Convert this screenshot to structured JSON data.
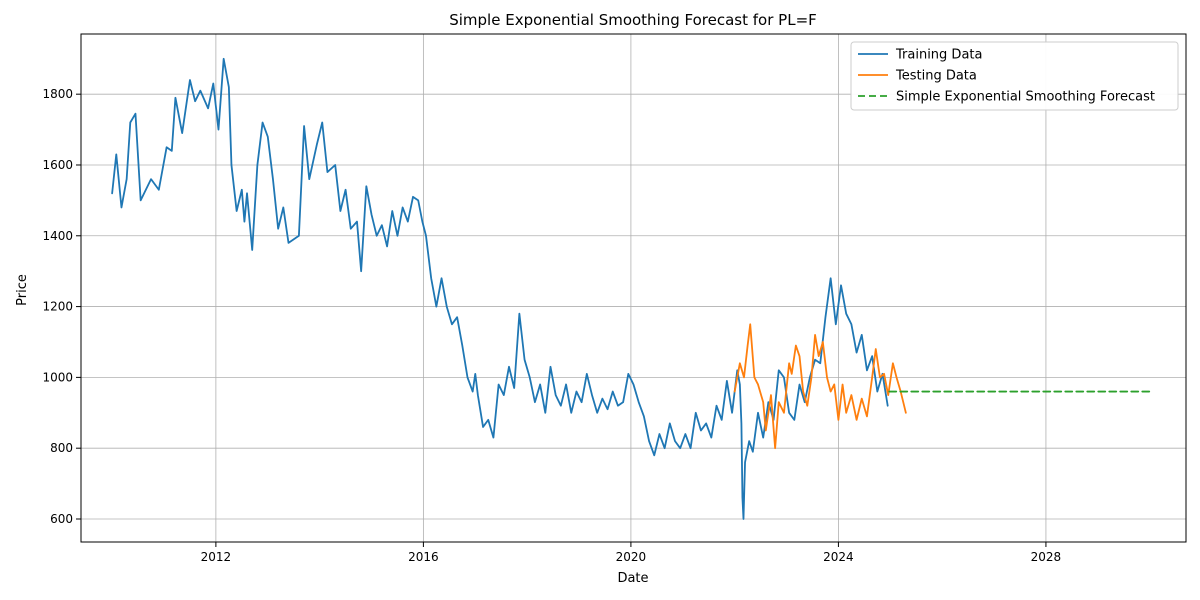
{
  "chart_data": {
    "type": "line",
    "title": "Simple Exponential Smoothing Forecast for PL=F",
    "xlabel": "Date",
    "ylabel": "Price",
    "xlim": [
      2009.4,
      2030.7
    ],
    "ylim": [
      535,
      1970
    ],
    "xticks": [
      2012,
      2016,
      2020,
      2024,
      2028
    ],
    "yticks": [
      600,
      800,
      1000,
      1200,
      1400,
      1600,
      1800
    ],
    "grid": true,
    "legend_position": "top-right",
    "series": [
      {
        "name": "Training Data",
        "color": "#1f77b4",
        "points": [
          [
            2010.0,
            1520
          ],
          [
            2010.08,
            1630
          ],
          [
            2010.18,
            1480
          ],
          [
            2010.28,
            1560
          ],
          [
            2010.35,
            1720
          ],
          [
            2010.45,
            1745
          ],
          [
            2010.55,
            1500
          ],
          [
            2010.75,
            1560
          ],
          [
            2010.9,
            1530
          ],
          [
            2011.05,
            1650
          ],
          [
            2011.15,
            1640
          ],
          [
            2011.22,
            1790
          ],
          [
            2011.35,
            1690
          ],
          [
            2011.5,
            1840
          ],
          [
            2011.6,
            1780
          ],
          [
            2011.7,
            1810
          ],
          [
            2011.85,
            1760
          ],
          [
            2011.95,
            1830
          ],
          [
            2012.05,
            1700
          ],
          [
            2012.15,
            1900
          ],
          [
            2012.25,
            1820
          ],
          [
            2012.3,
            1600
          ],
          [
            2012.4,
            1470
          ],
          [
            2012.5,
            1530
          ],
          [
            2012.55,
            1440
          ],
          [
            2012.6,
            1520
          ],
          [
            2012.7,
            1360
          ],
          [
            2012.8,
            1600
          ],
          [
            2012.9,
            1720
          ],
          [
            2013.0,
            1680
          ],
          [
            2013.1,
            1560
          ],
          [
            2013.2,
            1420
          ],
          [
            2013.3,
            1480
          ],
          [
            2013.4,
            1380
          ],
          [
            2013.6,
            1400
          ],
          [
            2013.7,
            1710
          ],
          [
            2013.8,
            1560
          ],
          [
            2013.95,
            1660
          ],
          [
            2014.05,
            1720
          ],
          [
            2014.15,
            1580
          ],
          [
            2014.3,
            1600
          ],
          [
            2014.4,
            1470
          ],
          [
            2014.5,
            1530
          ],
          [
            2014.6,
            1420
          ],
          [
            2014.72,
            1440
          ],
          [
            2014.8,
            1300
          ],
          [
            2014.9,
            1540
          ],
          [
            2015.0,
            1460
          ],
          [
            2015.1,
            1400
          ],
          [
            2015.2,
            1430
          ],
          [
            2015.3,
            1370
          ],
          [
            2015.4,
            1470
          ],
          [
            2015.5,
            1400
          ],
          [
            2015.6,
            1480
          ],
          [
            2015.7,
            1440
          ],
          [
            2015.8,
            1510
          ],
          [
            2015.9,
            1500
          ],
          [
            2015.98,
            1440
          ],
          [
            2016.05,
            1400
          ],
          [
            2016.15,
            1280
          ],
          [
            2016.25,
            1200
          ],
          [
            2016.35,
            1280
          ],
          [
            2016.45,
            1200
          ],
          [
            2016.55,
            1150
          ],
          [
            2016.65,
            1170
          ],
          [
            2016.75,
            1090
          ],
          [
            2016.85,
            1000
          ],
          [
            2016.95,
            960
          ],
          [
            2017.0,
            1010
          ],
          [
            2017.05,
            950
          ],
          [
            2017.15,
            860
          ],
          [
            2017.25,
            880
          ],
          [
            2017.35,
            830
          ],
          [
            2017.45,
            980
          ],
          [
            2017.55,
            950
          ],
          [
            2017.65,
            1030
          ],
          [
            2017.75,
            970
          ],
          [
            2017.85,
            1180
          ],
          [
            2017.95,
            1050
          ],
          [
            2018.05,
            1000
          ],
          [
            2018.15,
            930
          ],
          [
            2018.25,
            980
          ],
          [
            2018.35,
            900
          ],
          [
            2018.45,
            1030
          ],
          [
            2018.55,
            950
          ],
          [
            2018.65,
            920
          ],
          [
            2018.75,
            980
          ],
          [
            2018.85,
            900
          ],
          [
            2018.95,
            960
          ],
          [
            2019.05,
            930
          ],
          [
            2019.15,
            1010
          ],
          [
            2019.25,
            950
          ],
          [
            2019.35,
            900
          ],
          [
            2019.45,
            940
          ],
          [
            2019.55,
            910
          ],
          [
            2019.65,
            960
          ],
          [
            2019.75,
            920
          ],
          [
            2019.85,
            930
          ],
          [
            2019.95,
            1010
          ],
          [
            2020.05,
            980
          ],
          [
            2020.15,
            930
          ],
          [
            2020.25,
            890
          ],
          [
            2020.35,
            820
          ],
          [
            2020.45,
            780
          ],
          [
            2020.55,
            840
          ],
          [
            2020.65,
            800
          ],
          [
            2020.75,
            870
          ],
          [
            2020.85,
            820
          ],
          [
            2020.95,
            800
          ],
          [
            2021.05,
            840
          ],
          [
            2021.15,
            800
          ],
          [
            2021.25,
            900
          ],
          [
            2021.35,
            850
          ],
          [
            2021.45,
            870
          ],
          [
            2021.55,
            830
          ],
          [
            2021.65,
            920
          ],
          [
            2021.75,
            880
          ],
          [
            2021.85,
            990
          ],
          [
            2021.95,
            900
          ],
          [
            2022.05,
            1020
          ],
          [
            2022.1,
            980
          ],
          [
            2022.13,
            870
          ],
          [
            2022.15,
            660
          ],
          [
            2022.17,
            600
          ],
          [
            2022.2,
            760
          ],
          [
            2022.28,
            820
          ],
          [
            2022.35,
            790
          ],
          [
            2022.45,
            900
          ],
          [
            2022.55,
            830
          ],
          [
            2022.65,
            930
          ],
          [
            2022.75,
            880
          ],
          [
            2022.85,
            1020
          ],
          [
            2022.95,
            1000
          ],
          [
            2023.05,
            900
          ],
          [
            2023.15,
            880
          ],
          [
            2023.25,
            980
          ],
          [
            2023.35,
            930
          ],
          [
            2023.45,
            1000
          ],
          [
            2023.55,
            1050
          ],
          [
            2023.65,
            1040
          ],
          [
            2023.75,
            1170
          ],
          [
            2023.85,
            1280
          ],
          [
            2023.95,
            1150
          ],
          [
            2024.05,
            1260
          ],
          [
            2024.15,
            1180
          ],
          [
            2024.25,
            1150
          ],
          [
            2024.35,
            1070
          ],
          [
            2024.45,
            1120
          ],
          [
            2024.55,
            1020
          ],
          [
            2024.65,
            1060
          ],
          [
            2024.75,
            960
          ],
          [
            2024.85,
            1010
          ],
          [
            2024.95,
            920
          ]
        ]
      },
      {
        "name": "Testing Data",
        "color": "#ff7f0e",
        "points": [
          [
            2022.0,
            960
          ],
          [
            2022.1,
            1040
          ],
          [
            2022.18,
            1000
          ],
          [
            2022.25,
            1090
          ],
          [
            2022.3,
            1150
          ],
          [
            2022.38,
            1000
          ],
          [
            2022.45,
            980
          ],
          [
            2022.55,
            930
          ],
          [
            2022.6,
            850
          ],
          [
            2022.7,
            950
          ],
          [
            2022.78,
            800
          ],
          [
            2022.85,
            930
          ],
          [
            2022.95,
            900
          ],
          [
            2023.05,
            1040
          ],
          [
            2023.1,
            1010
          ],
          [
            2023.18,
            1090
          ],
          [
            2023.25,
            1060
          ],
          [
            2023.32,
            960
          ],
          [
            2023.4,
            920
          ],
          [
            2023.48,
            1000
          ],
          [
            2023.55,
            1120
          ],
          [
            2023.62,
            1060
          ],
          [
            2023.7,
            1100
          ],
          [
            2023.78,
            1000
          ],
          [
            2023.85,
            960
          ],
          [
            2023.92,
            980
          ],
          [
            2024.0,
            880
          ],
          [
            2024.08,
            980
          ],
          [
            2024.15,
            900
          ],
          [
            2024.25,
            950
          ],
          [
            2024.35,
            880
          ],
          [
            2024.45,
            940
          ],
          [
            2024.55,
            890
          ],
          [
            2024.65,
            1000
          ],
          [
            2024.72,
            1080
          ],
          [
            2024.8,
            1000
          ],
          [
            2024.88,
            1010
          ],
          [
            2024.96,
            950
          ],
          [
            2025.05,
            1040
          ],
          [
            2025.12,
            1000
          ],
          [
            2025.2,
            960
          ],
          [
            2025.25,
            930
          ],
          [
            2025.3,
            900
          ]
        ]
      },
      {
        "name": "Simple Exponential Smoothing Forecast",
        "color": "#2ca02c",
        "dashed": true,
        "points": [
          [
            2024.98,
            960
          ],
          [
            2030.0,
            960
          ]
        ]
      }
    ]
  }
}
